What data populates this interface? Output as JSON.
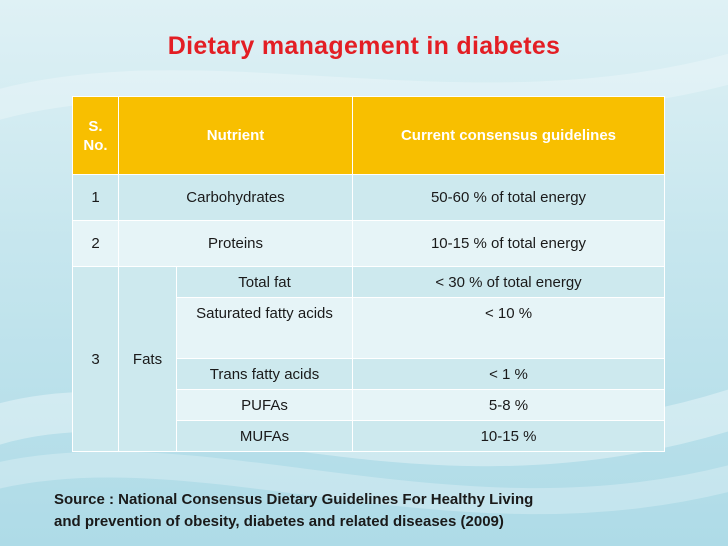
{
  "slide": {
    "title": "Dietary management in diabetes",
    "colors": {
      "title": "#e31e24",
      "header_bg": "#f8bf00",
      "row_dark": "#cde9ee",
      "row_light": "#e6f4f7"
    }
  },
  "table": {
    "headers": {
      "sno": "S. No.",
      "nutrient": "Nutrient",
      "guidelines": "Current consensus guidelines"
    },
    "rows": [
      {
        "sno": "1",
        "nutrient": "Carbohydrates",
        "guideline": "50-60 % of total energy"
      },
      {
        "sno": "2",
        "nutrient": "Proteins",
        "guideline": "10-15 % of total energy"
      }
    ],
    "fats": {
      "sno": "3",
      "label": "Fats",
      "items": [
        {
          "name": "Total fat",
          "guideline": "< 30 % of total energy"
        },
        {
          "name": "Saturated fatty acids",
          "guideline": "< 10 %"
        },
        {
          "name": "Trans fatty acids",
          "guideline": "< 1 %"
        },
        {
          "name": "PUFAs",
          "guideline": "5-8 %"
        },
        {
          "name": "MUFAs",
          "guideline": "10-15 %"
        }
      ]
    }
  },
  "source": {
    "line1": "Source : National  Consensus Dietary Guidelines For  Healthy Living",
    "line2": "and prevention of obesity, diabetes and related diseases (2009)"
  }
}
